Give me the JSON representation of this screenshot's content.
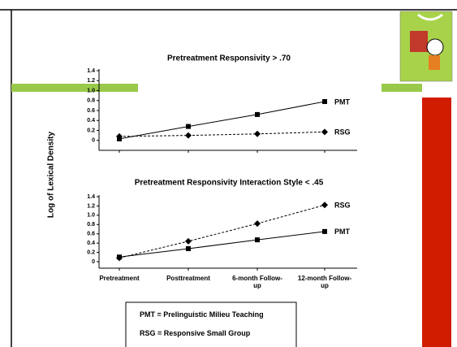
{
  "ylabel": "Log of Lexical Density",
  "chart_data": [
    {
      "type": "line",
      "title": "Pretreatment Responsivity  > .70",
      "categories": [
        null,
        null,
        null,
        null
      ],
      "series": [
        {
          "name": "PMT",
          "color": "#000000",
          "line_style": "solid",
          "marker": "square",
          "values": [
            0.03,
            0.28,
            0.52,
            0.78
          ]
        },
        {
          "name": "RSG",
          "color": "#000000",
          "line_style": "dashed",
          "marker": "diamond",
          "values": [
            0.08,
            0.1,
            0.13,
            0.17
          ]
        }
      ],
      "ylim": [
        -0.2,
        1.4
      ],
      "yticks": [
        0,
        0.2,
        0.4,
        0.6,
        0.8,
        {
          "value": 1,
          "label": "1.0"
        },
        1.2,
        1.4
      ]
    },
    {
      "type": "line",
      "title": "Pretreatment Responsivity Interaction Style  < .45",
      "categories": [
        "Pretreatment",
        "Posttreatment",
        "6-month Follow-up",
        "12-month Follow-up"
      ],
      "series": [
        {
          "name": "RSG",
          "color": "#000000",
          "line_style": "dashed",
          "marker": "diamond",
          "values": [
            0.08,
            0.44,
            0.82,
            1.22
          ]
        },
        {
          "name": "PMT",
          "color": "#000000",
          "line_style": "solid",
          "marker": "square",
          "values": [
            0.1,
            0.28,
            0.47,
            0.65
          ]
        }
      ],
      "ylim": [
        -0.14,
        1.4
      ],
      "yticks": [
        0,
        0.2,
        0.4,
        0.6,
        0.8,
        {
          "value": 1,
          "label": "1.0"
        },
        1.2,
        1.4
      ]
    }
  ],
  "legend_box": [
    "PMT = Prelinguistic Milieu Teaching",
    "RSG = Responsive Small Group"
  ]
}
